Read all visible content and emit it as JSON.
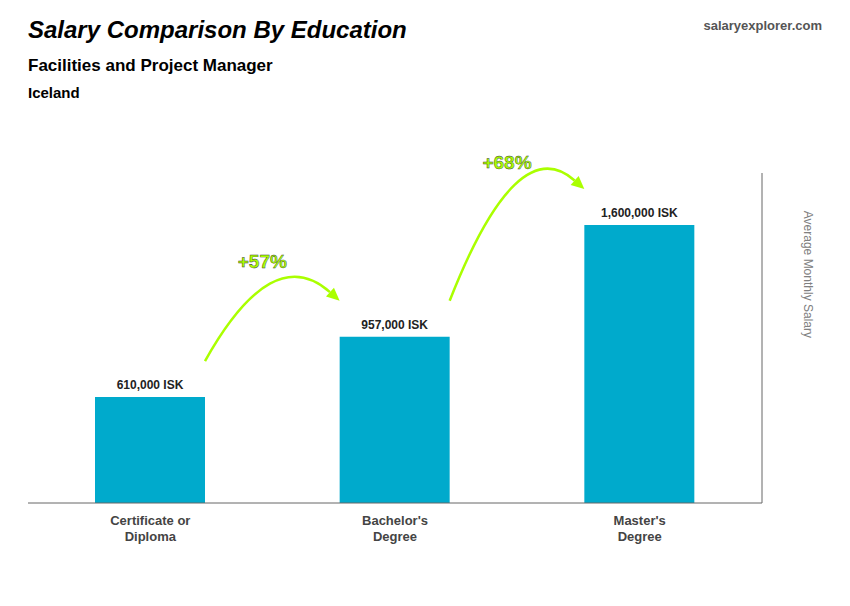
{
  "chart_data": {
    "type": "bar",
    "title": "Salary Comparison By Education",
    "subtitle": "Facilities and Project Manager",
    "annotations": [
      {
        "text": "Iceland"
      },
      {
        "text": "salaryexplorer.com"
      },
      {
        "text": "+57%",
        "color": "#aaff00"
      },
      {
        "text": "+68%",
        "color": "#aaff00"
      }
    ],
    "ylabel": "Average Monthly Salary",
    "categories": [
      "Certificate or\nDiploma",
      "Bachelor's\nDegree",
      "Master's\nDegree"
    ],
    "values": [
      610000,
      957000,
      1600000
    ],
    "value_labels": [
      "610,000 ISK",
      "957,000 ISK",
      "1,600,000 ISK"
    ],
    "data_labels": true,
    "color": "#00aacc",
    "ylim": [
      0,
      1900000
    ],
    "yticks": [],
    "tick_labels": "x",
    "grid": false
  }
}
